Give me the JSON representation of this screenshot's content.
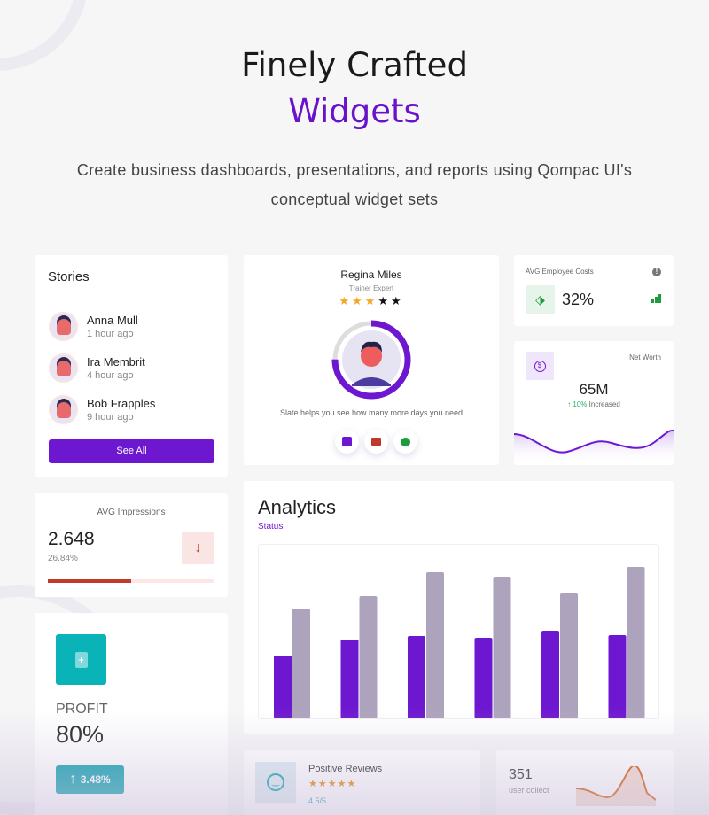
{
  "hero": {
    "title_line1": "Finely Crafted",
    "title_line2": "Widgets",
    "subtitle": "Create business dashboards, presentations, and reports using Qompac UI's conceptual widget sets",
    "accent": "#6a11cb"
  },
  "stories": {
    "title": "Stories",
    "items": [
      {
        "name": "Anna Mull",
        "time": "1 hour ago"
      },
      {
        "name": "Ira Membrit",
        "time": "4 hour ago"
      },
      {
        "name": "Bob Frapples",
        "time": "9 hour ago"
      }
    ],
    "button": "See All"
  },
  "profile": {
    "name": "Regina Miles",
    "role": "Trainer Expert",
    "rating": 3,
    "max_rating": 5,
    "progress_percent": 75,
    "text": "Slate helps you see how many more days you need",
    "actions": [
      "calendar-icon",
      "video-icon",
      "chat-icon"
    ]
  },
  "employee_costs": {
    "title": "AVG Employee Costs",
    "value": "32%",
    "icon": "tag-icon",
    "trend_color": "#1e9b3c"
  },
  "net_worth": {
    "title": "Net Worth",
    "value": "65M",
    "change": "↑ 10%",
    "change_label": "Increased",
    "icon": "dollar-icon"
  },
  "impressions": {
    "title": "AVG Impressions",
    "value": "2.648",
    "percent": "26.84%",
    "progress_percent": 50,
    "color": "#c0392b"
  },
  "profit": {
    "label": "PROFIT",
    "value": "80%",
    "change": "3.48%",
    "icon": "file-add-icon",
    "color": "#0ab3b8"
  },
  "analytics": {
    "title": "Analytics",
    "subtitle": "Status"
  },
  "chart_data": {
    "type": "bar",
    "categories": [
      "",
      "",
      "",
      "",
      "",
      ""
    ],
    "series": [
      {
        "values": [
          71,
          89,
          93,
          91,
          99,
          94
        ],
        "color": "#6e17d0"
      },
      {
        "values": [
          124,
          138,
          165,
          160,
          142,
          171
        ],
        "color": "#ada3bd"
      }
    ],
    "ylim": [
      0,
      196
    ],
    "grid": false
  },
  "reviews": {
    "title": "Positive Reviews",
    "rating": 5,
    "score": "4.5/5"
  },
  "users": {
    "value": "351",
    "label": "user collect"
  }
}
